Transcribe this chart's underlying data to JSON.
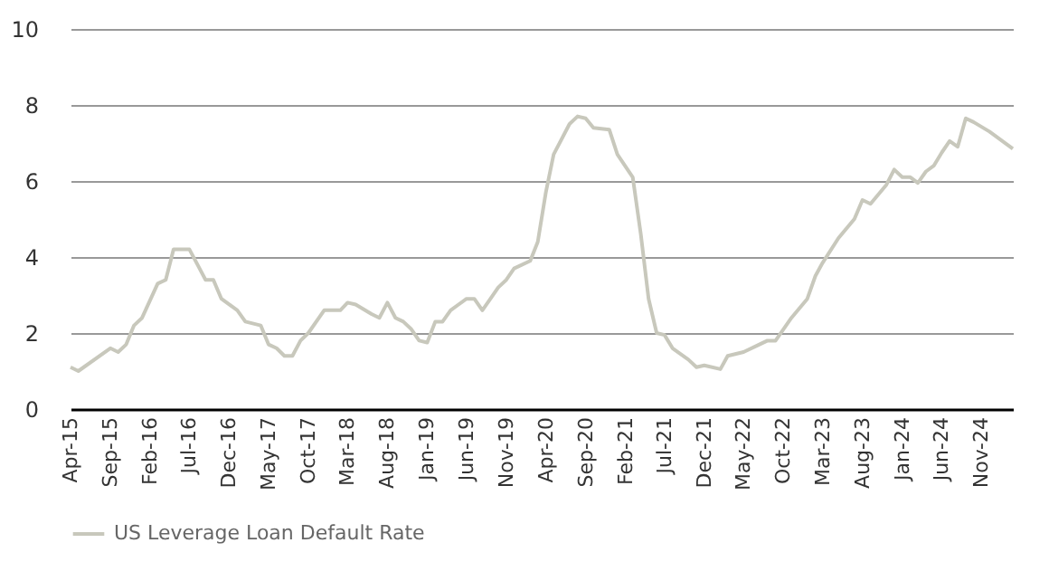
{
  "chart_data": {
    "type": "line",
    "x": [
      "2015-04",
      "2015-05",
      "2015-09",
      "2015-10",
      "2015-11",
      "2015-12",
      "2016-01",
      "2016-03",
      "2016-04",
      "2016-05",
      "2016-07",
      "2016-08",
      "2016-09",
      "2016-10",
      "2016-11",
      "2017-01",
      "2017-02",
      "2017-04",
      "2017-05",
      "2017-06",
      "2017-07",
      "2017-08",
      "2017-09",
      "2017-10",
      "2017-12",
      "2018-02",
      "2018-03",
      "2018-04",
      "2018-06",
      "2018-07",
      "2018-08",
      "2018-09",
      "2018-10",
      "2018-11",
      "2018-12",
      "2019-01",
      "2019-02",
      "2019-03",
      "2019-04",
      "2019-06",
      "2019-07",
      "2019-08",
      "2019-09",
      "2019-10",
      "2019-11",
      "2019-12",
      "2020-02",
      "2020-03",
      "2020-04",
      "2020-05",
      "2020-07",
      "2020-08",
      "2020-09",
      "2020-10",
      "2020-12",
      "2021-01",
      "2021-03",
      "2021-04",
      "2021-05",
      "2021-06",
      "2021-07",
      "2021-08",
      "2021-10",
      "2021-11",
      "2021-12",
      "2022-02",
      "2022-03",
      "2022-05",
      "2022-07",
      "2022-08",
      "2022-09",
      "2022-11",
      "2023-01",
      "2023-02",
      "2023-03",
      "2023-05",
      "2023-07",
      "2023-08",
      "2023-09",
      "2023-11",
      "2023-12",
      "2024-01",
      "2024-02",
      "2024-03",
      "2024-04",
      "2024-05",
      "2024-06",
      "2024-07",
      "2024-08",
      "2024-09",
      "2024-10",
      "2024-12",
      "2025-03"
    ],
    "series": [
      {
        "name": "US Leverage Loan Default Rate",
        "color": "#c8c8bc",
        "values": [
          1.1,
          1.0,
          1.6,
          1.5,
          1.7,
          2.2,
          2.4,
          3.3,
          3.4,
          4.2,
          4.2,
          3.8,
          3.4,
          3.4,
          2.9,
          2.6,
          2.3,
          2.2,
          1.7,
          1.6,
          1.4,
          1.4,
          1.8,
          2.0,
          2.6,
          2.6,
          2.8,
          2.75,
          2.5,
          2.4,
          2.8,
          2.4,
          2.3,
          2.1,
          1.8,
          1.75,
          2.3,
          2.3,
          2.6,
          2.9,
          2.9,
          2.6,
          2.9,
          3.2,
          3.4,
          3.7,
          3.9,
          4.4,
          5.7,
          6.7,
          7.5,
          7.7,
          7.65,
          7.4,
          7.35,
          6.7,
          6.1,
          4.6,
          2.9,
          2.0,
          1.95,
          1.6,
          1.3,
          1.1,
          1.15,
          1.05,
          1.4,
          1.5,
          1.7,
          1.8,
          1.8,
          2.4,
          2.9,
          3.5,
          3.85,
          4.5,
          5.0,
          5.5,
          5.4,
          5.9,
          6.3,
          6.1,
          6.1,
          5.95,
          6.25,
          6.4,
          6.75,
          7.05,
          6.9,
          7.65,
          7.55,
          7.3,
          6.85
        ]
      }
    ],
    "xlim": [
      "2015-04",
      "2025-03"
    ],
    "xticks": [
      {
        "value": "2015-04",
        "label": "Apr-15"
      },
      {
        "value": "2015-09",
        "label": "Sep-15"
      },
      {
        "value": "2016-02",
        "label": "Feb-16"
      },
      {
        "value": "2016-07",
        "label": "Jul-16"
      },
      {
        "value": "2016-12",
        "label": "Dec-16"
      },
      {
        "value": "2017-05",
        "label": "May-17"
      },
      {
        "value": "2017-10",
        "label": "Oct-17"
      },
      {
        "value": "2018-03",
        "label": "Mar-18"
      },
      {
        "value": "2018-08",
        "label": "Aug-18"
      },
      {
        "value": "2019-01",
        "label": "Jan-19"
      },
      {
        "value": "2019-06",
        "label": "Jun-19"
      },
      {
        "value": "2019-11",
        "label": "Nov-19"
      },
      {
        "value": "2020-04",
        "label": "Apr-20"
      },
      {
        "value": "2020-09",
        "label": "Sep-20"
      },
      {
        "value": "2021-02",
        "label": "Feb-21"
      },
      {
        "value": "2021-07",
        "label": "Jul-21"
      },
      {
        "value": "2021-12",
        "label": "Dec-21"
      },
      {
        "value": "2022-05",
        "label": "May-22"
      },
      {
        "value": "2022-10",
        "label": "Oct-22"
      },
      {
        "value": "2023-03",
        "label": "Mar-23"
      },
      {
        "value": "2023-08",
        "label": "Aug-23"
      },
      {
        "value": "2024-01",
        "label": "Jan-24"
      },
      {
        "value": "2024-06",
        "label": "Jun-24"
      },
      {
        "value": "2024-11",
        "label": "Nov-24"
      }
    ],
    "ylim": [
      0,
      10
    ],
    "yticks": [
      0,
      2,
      4,
      6,
      8,
      10
    ],
    "grid": "y",
    "legend": "bottom",
    "line_style": "solid"
  }
}
